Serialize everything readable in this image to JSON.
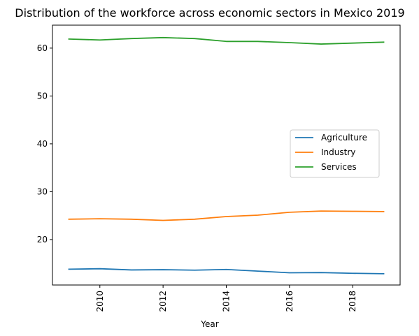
{
  "chart_data": {
    "type": "line",
    "title": "Distribution of the workforce across economic sectors in Mexico 2019",
    "xlabel": "Year",
    "ylabel": "",
    "x": [
      2009,
      2010,
      2011,
      2012,
      2013,
      2014,
      2015,
      2016,
      2017,
      2018,
      2019
    ],
    "xlim": [
      2008.5,
      2019.5
    ],
    "ylim": [
      10.5,
      64.8
    ],
    "xticks": [
      "2010",
      "2012",
      "2014",
      "2016",
      "2018"
    ],
    "yticks": [
      "20",
      "30",
      "40",
      "50",
      "60"
    ],
    "grid": false,
    "legend_position": "center-right",
    "series": [
      {
        "name": "Agriculture",
        "color": "#1f77b4",
        "values": [
          13.8,
          13.9,
          13.65,
          13.7,
          13.6,
          13.75,
          13.4,
          13.05,
          13.1,
          12.95,
          12.85
        ]
      },
      {
        "name": "Industry",
        "color": "#ff7f0e",
        "values": [
          24.25,
          24.35,
          24.25,
          24.0,
          24.25,
          24.8,
          25.1,
          25.7,
          25.95,
          25.9,
          25.85
        ]
      },
      {
        "name": "Services",
        "color": "#2ca02c",
        "values": [
          61.9,
          61.7,
          62.0,
          62.2,
          62.0,
          61.4,
          61.4,
          61.15,
          60.85,
          61.05,
          61.25
        ]
      }
    ]
  }
}
